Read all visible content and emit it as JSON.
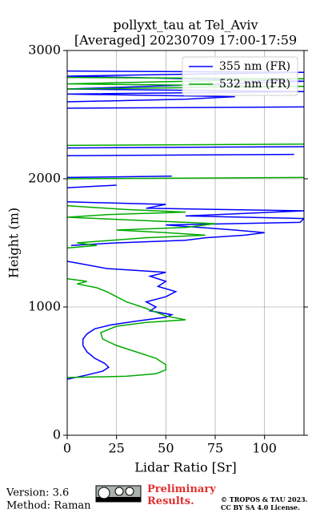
{
  "chart_data": {
    "type": "line",
    "title": "pollyxt_tau at Tel_Aviv",
    "subtitle": "[Averaged] 20230709 17:00-17:59",
    "x_label": "Lidar Ratio [Sr]",
    "y_label": "Height (m)",
    "xlim": [
      0,
      120
    ],
    "ylim": [
      0,
      3000
    ],
    "xticks": [
      0,
      25,
      50,
      75,
      100
    ],
    "yticks": [
      0,
      1000,
      2000,
      3000
    ],
    "grid": true,
    "legend": "upper right",
    "series": [
      {
        "name": "355 nm (FR)",
        "color": "#0000ff",
        "heights": [
          437,
          470,
          500,
          530,
          560,
          600,
          650,
          700,
          750,
          790,
          830,
          860,
          890,
          920,
          940,
          970,
          1000,
          1040,
          1080,
          1120,
          1160,
          1200,
          1240,
          1270,
          1300,
          1340,
          1356,
          null,
          1480,
          1500,
          1520,
          1540,
          1560,
          1580,
          1600,
          1640,
          1660,
          1690,
          1710,
          1750,
          1770,
          1800,
          1820,
          null,
          1930,
          1950,
          null,
          2010,
          2020,
          null,
          2180,
          2190,
          null,
          2240,
          2250,
          null,
          2550,
          2560,
          null,
          2600,
          2620,
          2640,
          2660,
          2680,
          2700,
          2760,
          2800,
          2830,
          2840
        ],
        "values": [
          0,
          10,
          18,
          21,
          19,
          14,
          10,
          8,
          8,
          10,
          14,
          22,
          35,
          50,
          53,
          42,
          45,
          40,
          50,
          55,
          46,
          50,
          42,
          50,
          20,
          6,
          0,
          null,
          2,
          25,
          60,
          70,
          90,
          100,
          85,
          50,
          118,
          120,
          60,
          120,
          40,
          50,
          0,
          null,
          0,
          25,
          null,
          0,
          53,
          null,
          0,
          115,
          null,
          0,
          120,
          null,
          0,
          120,
          null,
          0,
          60,
          85,
          0,
          120,
          0,
          120,
          0,
          120,
          0
        ]
      },
      {
        "name": "532 nm (FR)",
        "color": "#00aa00",
        "heights": [
          450,
          460,
          480,
          510,
          550,
          600,
          650,
          700,
          750,
          800,
          850,
          880,
          900,
          930,
          960,
          1000,
          1040,
          1080,
          1120,
          1150,
          1180,
          1200,
          1220,
          null,
          1460,
          1480,
          1500,
          1540,
          1560,
          1580,
          1600,
          1620,
          1650,
          1680,
          1700,
          1720,
          1740,
          1760,
          1790,
          null,
          2000,
          2010,
          null,
          2260,
          2270,
          null,
          2700,
          2720,
          2740,
          2780,
          2790
        ],
        "values": [
          0,
          30,
          45,
          50,
          50,
          45,
          35,
          25,
          18,
          17,
          25,
          40,
          60,
          50,
          45,
          38,
          30,
          25,
          20,
          15,
          5,
          10,
          0,
          null,
          0,
          15,
          5,
          40,
          70,
          50,
          25,
          60,
          75,
          30,
          0,
          20,
          60,
          30,
          0,
          null,
          0,
          120,
          null,
          0,
          120,
          null,
          0,
          120,
          0,
          120,
          0
        ]
      }
    ]
  },
  "footer": {
    "version": "Version: 3.6",
    "method": "Method: Raman",
    "notice": "Preliminary Results.",
    "copyright": "© TROPOS & TAU 2023.",
    "license": "CC BY SA 4.0 License."
  }
}
